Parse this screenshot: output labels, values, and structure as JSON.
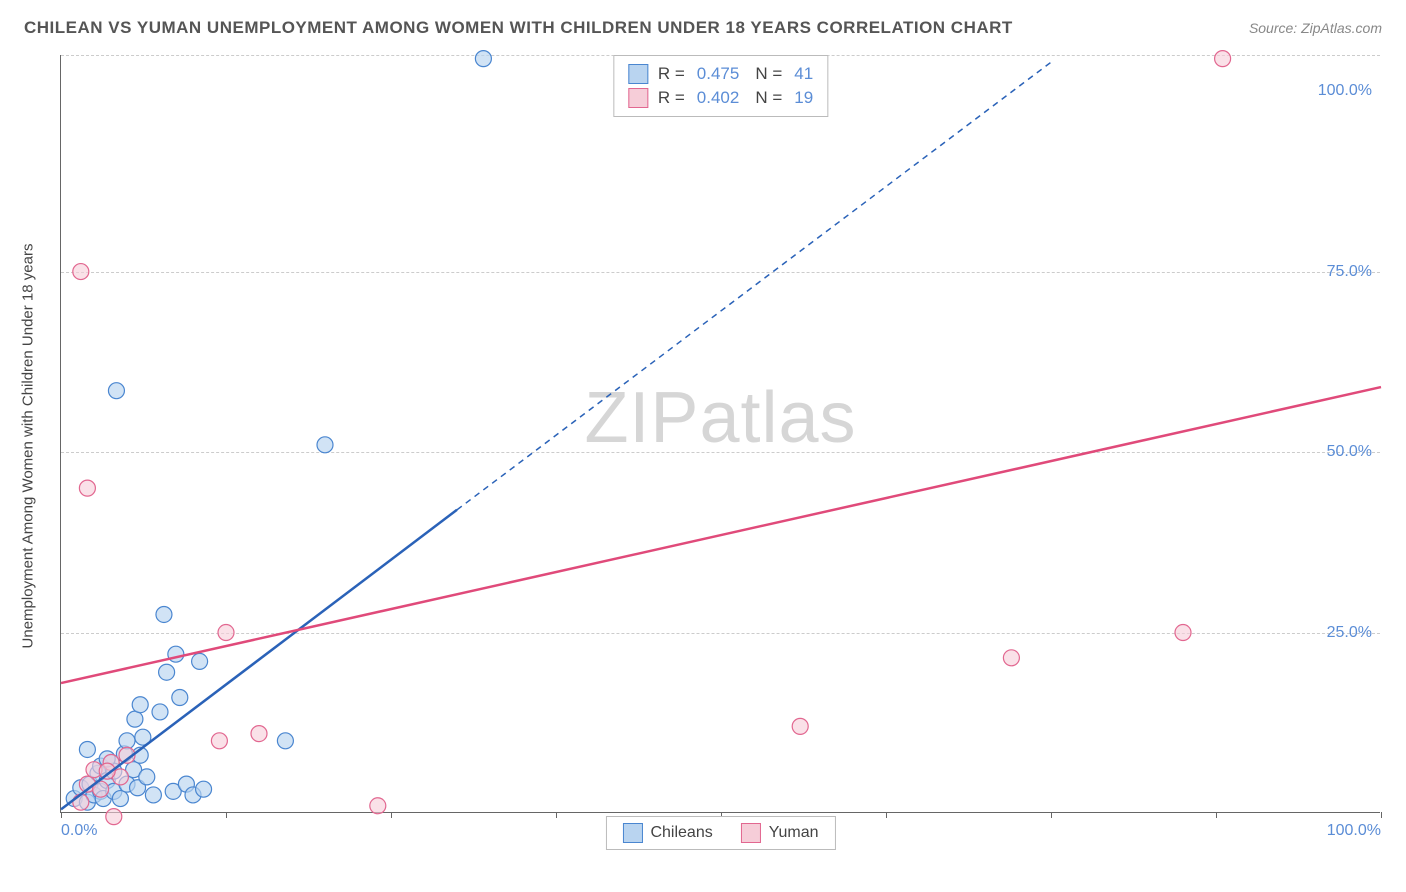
{
  "title": "CHILEAN VS YUMAN UNEMPLOYMENT AMONG WOMEN WITH CHILDREN UNDER 18 YEARS CORRELATION CHART",
  "source": "Source: ZipAtlas.com",
  "watermark_zip": "ZIP",
  "watermark_atlas": "atlas",
  "ylabel": "Unemployment Among Women with Children Under 18 years",
  "chart": {
    "type": "scatter",
    "background_color": "#ffffff",
    "grid_color": "#cccccc",
    "axis_color": "#666666",
    "xlim": [
      0,
      100
    ],
    "ylim": [
      0,
      105
    ],
    "y_gridlines": [
      25,
      50,
      75,
      105
    ],
    "y_ticks": [
      {
        "v": 25,
        "label": "25.0%"
      },
      {
        "v": 50,
        "label": "50.0%"
      },
      {
        "v": 75,
        "label": "75.0%"
      },
      {
        "v": 100,
        "label": "100.0%"
      }
    ],
    "x_tick_positions": [
      0,
      12.5,
      25,
      37.5,
      50,
      62.5,
      75,
      87.5,
      100
    ],
    "x_tick_labels": [
      {
        "v": 0,
        "label": "0.0%",
        "cls": "first"
      },
      {
        "v": 100,
        "label": "100.0%",
        "cls": "last"
      }
    ],
    "series": [
      {
        "name": "Chileans",
        "fill": "#b9d4f0",
        "stroke": "#4a86d0",
        "line_color": "#2a62b8",
        "marker_r": 8,
        "marker_opacity": 0.65,
        "reg": {
          "x1": 0,
          "y1": 0.5,
          "x2": 30,
          "y2": 42,
          "x3": 75,
          "y3": 104,
          "solid_to_x": 30
        },
        "points": [
          [
            1,
            2
          ],
          [
            1.5,
            3.5
          ],
          [
            2,
            1.5
          ],
          [
            2.2,
            4
          ],
          [
            2.5,
            2.5
          ],
          [
            2.8,
            5.5
          ],
          [
            3,
            3
          ],
          [
            3,
            6.5
          ],
          [
            3.2,
            2
          ],
          [
            3.5,
            4.5
          ],
          [
            3.8,
            7
          ],
          [
            4,
            3
          ],
          [
            4,
            5.8
          ],
          [
            4.5,
            2
          ],
          [
            4.8,
            8.2
          ],
          [
            5,
            4
          ],
          [
            5,
            10
          ],
          [
            5.5,
            6
          ],
          [
            5.6,
            13
          ],
          [
            5.8,
            3.5
          ],
          [
            6,
            8
          ],
          [
            6,
            15
          ],
          [
            6.2,
            10.5
          ],
          [
            6.5,
            5
          ],
          [
            7,
            2.5
          ],
          [
            7.5,
            14
          ],
          [
            7.8,
            27.5
          ],
          [
            8,
            19.5
          ],
          [
            8.5,
            3
          ],
          [
            8.7,
            22
          ],
          [
            9,
            16
          ],
          [
            9.5,
            4
          ],
          [
            10,
            2.5
          ],
          [
            10.5,
            21
          ],
          [
            10.8,
            3.3
          ],
          [
            17,
            10
          ],
          [
            20,
            51
          ],
          [
            4.2,
            58.5
          ],
          [
            32,
            104.5
          ],
          [
            3.5,
            7.5
          ],
          [
            2,
            8.8
          ]
        ]
      },
      {
        "name": "Yuman",
        "fill": "#f6cdd8",
        "stroke": "#e26790",
        "line_color": "#e04a7a",
        "marker_r": 8,
        "marker_opacity": 0.6,
        "reg": {
          "x1": 0,
          "y1": 18,
          "x2": 100,
          "y2": 59
        },
        "points": [
          [
            1.5,
            1.5
          ],
          [
            2,
            4
          ],
          [
            2.5,
            6
          ],
          [
            3,
            3.3
          ],
          [
            3.8,
            7
          ],
          [
            4,
            -0.5
          ],
          [
            4.5,
            5
          ],
          [
            5,
            8
          ],
          [
            12,
            10
          ],
          [
            12.5,
            25
          ],
          [
            15,
            11
          ],
          [
            24,
            1
          ],
          [
            56,
            12
          ],
          [
            72,
            21.5
          ],
          [
            85,
            25
          ],
          [
            2,
            45
          ],
          [
            1.5,
            75
          ],
          [
            88,
            104.5
          ],
          [
            3.5,
            5.8
          ]
        ]
      }
    ]
  },
  "stats": [
    {
      "series": 0,
      "r": "0.475",
      "n": "41"
    },
    {
      "series": 1,
      "r": "0.402",
      "n": "19"
    }
  ],
  "legend": [
    {
      "series": 0,
      "label": "Chileans"
    },
    {
      "series": 1,
      "label": "Yuman"
    }
  ]
}
